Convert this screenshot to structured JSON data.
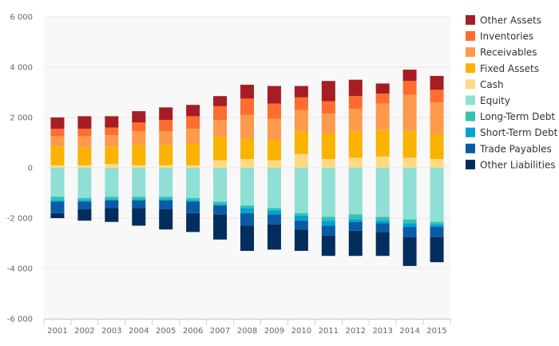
{
  "chart_data": {
    "type": "bar",
    "stacked": true,
    "title": "",
    "xlabel": "",
    "ylabel": "",
    "ylim": [
      -6000,
      6000
    ],
    "yticks": [
      -6000,
      -4000,
      -2000,
      0,
      2000,
      4000,
      6000
    ],
    "ytick_labels": [
      "-6 000",
      "-4 000",
      "-2 000",
      "0",
      "2 000",
      "4 000",
      "6 000"
    ],
    "grid": true,
    "legend_position": "right",
    "categories": [
      "2001",
      "2002",
      "2003",
      "2004",
      "2005",
      "2006",
      "2007",
      "2008",
      "2009",
      "2010",
      "2011",
      "2012",
      "2013",
      "2014",
      "2015"
    ],
    "series": [
      {
        "name": "Other Assets",
        "color": "#a61d24",
        "side": "asset",
        "values": [
          450,
          500,
          450,
          450,
          500,
          450,
          400,
          550,
          700,
          450,
          800,
          650,
          400,
          450,
          550
        ]
      },
      {
        "name": "Inventories",
        "color": "#fe6c2f",
        "side": "asset",
        "values": [
          300,
          300,
          300,
          350,
          450,
          500,
          550,
          650,
          600,
          500,
          500,
          500,
          400,
          550,
          500
        ]
      },
      {
        "name": "Receivables",
        "color": "#fd9a4c",
        "side": "asset",
        "values": [
          400,
          450,
          450,
          550,
          550,
          600,
          650,
          950,
          850,
          850,
          800,
          900,
          1050,
          1450,
          1250
        ]
      },
      {
        "name": "Fixed Assets",
        "color": "#f9b300",
        "side": "asset",
        "values": [
          750,
          700,
          700,
          800,
          800,
          850,
          950,
          800,
          800,
          900,
          1000,
          1050,
          1050,
          1050,
          1000
        ]
      },
      {
        "name": "Cash",
        "color": "#fed986",
        "side": "asset",
        "values": [
          100,
          100,
          150,
          100,
          100,
          100,
          300,
          350,
          300,
          550,
          350,
          400,
          450,
          400,
          350
        ]
      },
      {
        "name": "Equity",
        "color": "#8fdfd4",
        "side": "liability",
        "values": [
          1150,
          1200,
          1150,
          1150,
          1150,
          1200,
          1350,
          1500,
          1600,
          1800,
          1950,
          1850,
          1950,
          2050,
          2150
        ]
      },
      {
        "name": "Long-Term Debt",
        "color": "#32c1b0",
        "side": "liability",
        "values": [
          150,
          100,
          100,
          100,
          100,
          100,
          100,
          100,
          100,
          100,
          150,
          200,
          150,
          150,
          100
        ]
      },
      {
        "name": "Short-Term Debt",
        "color": "#00a2d4",
        "side": "liability",
        "values": [
          50,
          50,
          50,
          50,
          50,
          50,
          50,
          200,
          150,
          200,
          200,
          100,
          100,
          150,
          100
        ]
      },
      {
        "name": "Trade Payables",
        "color": "#0a5ba5",
        "side": "liability",
        "values": [
          450,
          300,
          300,
          300,
          350,
          450,
          350,
          500,
          400,
          350,
          400,
          350,
          350,
          400,
          400
        ]
      },
      {
        "name": "Other Liabilities",
        "color": "#032d5c",
        "side": "liability",
        "values": [
          200,
          450,
          550,
          700,
          800,
          750,
          1000,
          1000,
          1000,
          850,
          800,
          1000,
          950,
          1150,
          1000
        ]
      }
    ]
  }
}
